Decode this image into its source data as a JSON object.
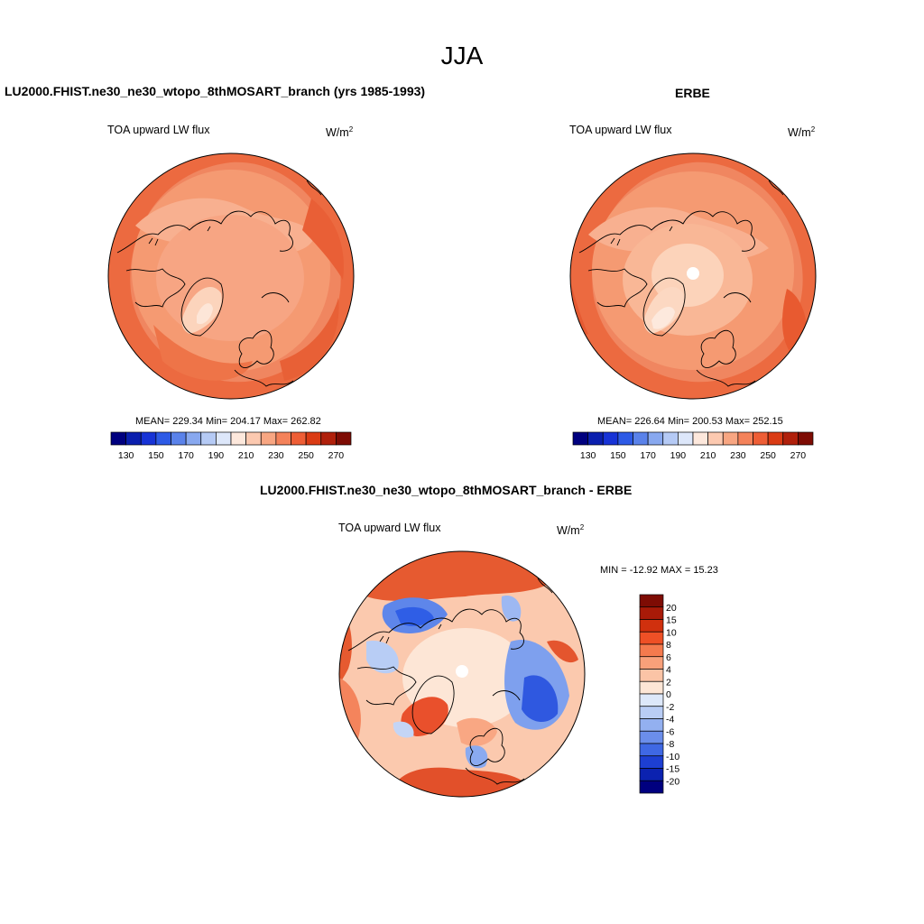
{
  "title": "JJA",
  "panels": {
    "model": {
      "title": "LU2000.FHIST.ne30_ne30_wtopo_8thMOSART_branch (yrs 1985-1993)",
      "variable": "TOA upward LW flux",
      "units": "W/m",
      "units_exp": "2",
      "stats": "MEAN= 229.34  Min= 204.17  Max= 262.82"
    },
    "obs": {
      "title": "ERBE",
      "variable": "TOA upward LW flux",
      "units": "W/m",
      "units_exp": "2",
      "stats": "MEAN= 226.64  Min= 200.53  Max= 252.15"
    },
    "diff": {
      "title": "LU2000.FHIST.ne30_ne30_wtopo_8thMOSART_branch - ERBE",
      "variable": "TOA upward LW flux",
      "units": "W/m",
      "units_exp": "2",
      "stats": "MIN = -12.92 MAX =  15.23"
    }
  },
  "chart_data": [
    {
      "type": "heatmap",
      "subtype": "polar-stereographic contour map",
      "title": "LU2000.FHIST.ne30_ne30_wtopo_8thMOSART_branch (yrs 1985-1993)",
      "variable": "TOA upward LW flux",
      "units": "W/m2",
      "mean": 229.34,
      "min": 204.17,
      "max": 262.82,
      "colorbar": {
        "orientation": "horizontal",
        "tick_labels": [
          "130",
          "150",
          "170",
          "190",
          "210",
          "230",
          "250",
          "270"
        ],
        "levels": [
          130,
          140,
          150,
          160,
          170,
          180,
          190,
          200,
          210,
          220,
          230,
          240,
          250,
          260,
          270
        ],
        "colors": [
          "#00007f",
          "#0a1fae",
          "#1733d6",
          "#2d5ae6",
          "#5a82ea",
          "#88a8ef",
          "#b5caf5",
          "#dde7fa",
          "#fde8dc",
          "#fcc9b0",
          "#f8a682",
          "#f4825a",
          "#ee5e36",
          "#da3b14",
          "#b0200b",
          "#7e0c04"
        ]
      }
    },
    {
      "type": "heatmap",
      "subtype": "polar-stereographic contour map",
      "title": "ERBE",
      "variable": "TOA upward LW flux",
      "units": "W/m2",
      "mean": 226.64,
      "min": 200.53,
      "max": 252.15,
      "colorbar": {
        "orientation": "horizontal",
        "tick_labels": [
          "130",
          "150",
          "170",
          "190",
          "210",
          "230",
          "250",
          "270"
        ],
        "levels": [
          130,
          140,
          150,
          160,
          170,
          180,
          190,
          200,
          210,
          220,
          230,
          240,
          250,
          260,
          270
        ],
        "colors": [
          "#00007f",
          "#0a1fae",
          "#1733d6",
          "#2d5ae6",
          "#5a82ea",
          "#88a8ef",
          "#b5caf5",
          "#dde7fa",
          "#fde8dc",
          "#fcc9b0",
          "#f8a682",
          "#f4825a",
          "#ee5e36",
          "#da3b14",
          "#b0200b",
          "#7e0c04"
        ]
      }
    },
    {
      "type": "heatmap",
      "subtype": "polar-stereographic contour map",
      "title": "LU2000.FHIST.ne30_ne30_wtopo_8thMOSART_branch - ERBE",
      "variable": "TOA upward LW flux",
      "units": "W/m2",
      "min": -12.92,
      "max": 15.23,
      "colorbar": {
        "orientation": "vertical",
        "tick_labels": [
          "20",
          "15",
          "10",
          "8",
          "6",
          "4",
          "2",
          "0",
          "-2",
          "-4",
          "-6",
          "-8",
          "-10",
          "-15",
          "-20"
        ],
        "colors_top_to_bottom": [
          "#7e0c04",
          "#a81a08",
          "#d0300e",
          "#ee5026",
          "#f47a4e",
          "#f8a07a",
          "#fbc4a6",
          "#fde6d6",
          "#dde8fa",
          "#b9cdf5",
          "#93b0f0",
          "#6b8eeb",
          "#3f68e4",
          "#1d3fd2",
          "#0b22b0",
          "#00007f"
        ]
      }
    }
  ]
}
